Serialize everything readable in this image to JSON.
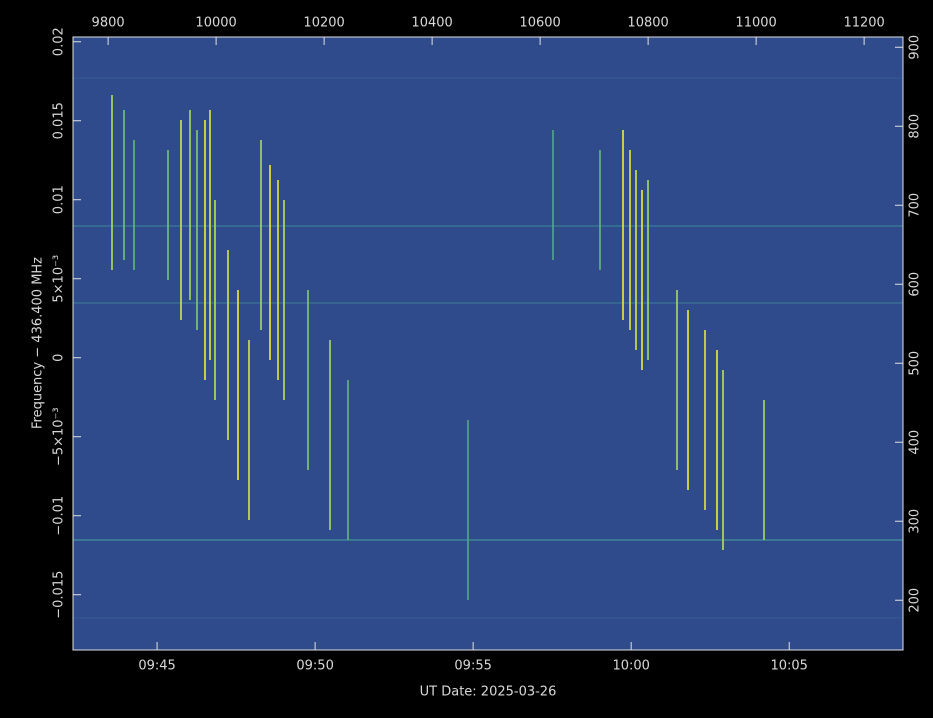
{
  "chart_data": {
    "type": "spectrogram",
    "xlabel": "UT Date: 2025-03-26",
    "ylabel": "Frequency − 436.400 MHz",
    "xlim": [
      582.34,
      608.6
    ],
    "xticks": [
      {
        "value": 585,
        "label": "09:45"
      },
      {
        "value": 590,
        "label": "09:50"
      },
      {
        "value": 595,
        "label": "09:55"
      },
      {
        "value": 600,
        "label": "10:00"
      },
      {
        "value": 605,
        "label": "10:05"
      }
    ],
    "x2lim": [
      9735,
      11272
    ],
    "x2ticks": [
      9800,
      10000,
      10200,
      10400,
      10600,
      10800,
      11000,
      11200
    ],
    "ylim": [
      -0.0185,
      0.0203
    ],
    "yticks": [
      {
        "value": -0.015,
        "label": "−0.015"
      },
      {
        "value": -0.01,
        "label": "−0.01"
      },
      {
        "value": -0.005,
        "label": "−5×10⁻³"
      },
      0,
      {
        "value": 0.005,
        "label": "5×10⁻³"
      },
      0.01,
      0.015,
      0.02
    ],
    "y2lim": [
      137,
      913
    ],
    "y2ticks": [
      200,
      300,
      400,
      500,
      600,
      700,
      800,
      900
    ]
  }
}
